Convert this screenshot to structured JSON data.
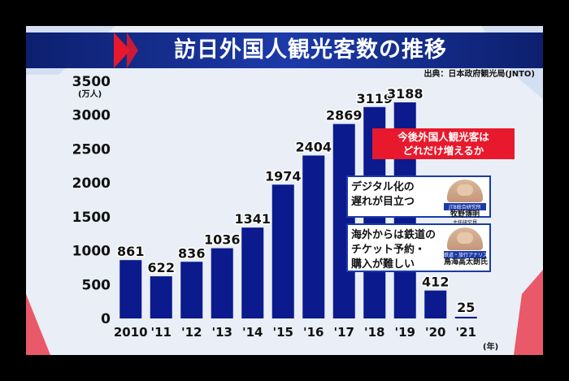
{
  "title": "訪日外国人観光客数の推移",
  "source": "出典：日本政府観光局(JNTO)",
  "chart_data": {
    "type": "bar",
    "title": "訪日外国人観光客数の推移",
    "y_unit": "(万人)",
    "x_unit": "(年)",
    "categories": [
      "2010",
      "'11",
      "'12",
      "'13",
      "'14",
      "'15",
      "'16",
      "'17",
      "'18",
      "'19",
      "'20",
      "'21"
    ],
    "values": [
      861,
      622,
      836,
      1036,
      1341,
      1974,
      2404,
      2869,
      3119,
      3188,
      412,
      25
    ],
    "ylim": [
      0,
      3500
    ],
    "yticks": [
      0,
      500,
      1000,
      1500,
      2000,
      2500,
      3000,
      3500
    ],
    "bar_color": "#0b1a8c",
    "grid": false,
    "legend": "none"
  },
  "caption": "今後外国人観光客は\nどれだけ増えるか",
  "comments": [
    {
      "text": "デジタル化の\n遅れが目立つ",
      "tag": "JTB総合研究所",
      "name": "牧野博明",
      "role": "主任研究員"
    },
    {
      "text": "海外からは鉄道の\nチケット予約・\n購入が難しい",
      "tag": "鉄道・旅行アナリスト",
      "name": "鳥海高太朗氏",
      "role": ""
    }
  ],
  "colors": {
    "accent_red": "#e8192c",
    "bar": "#0b1a8c",
    "title_bg": "#1c3aa8"
  }
}
